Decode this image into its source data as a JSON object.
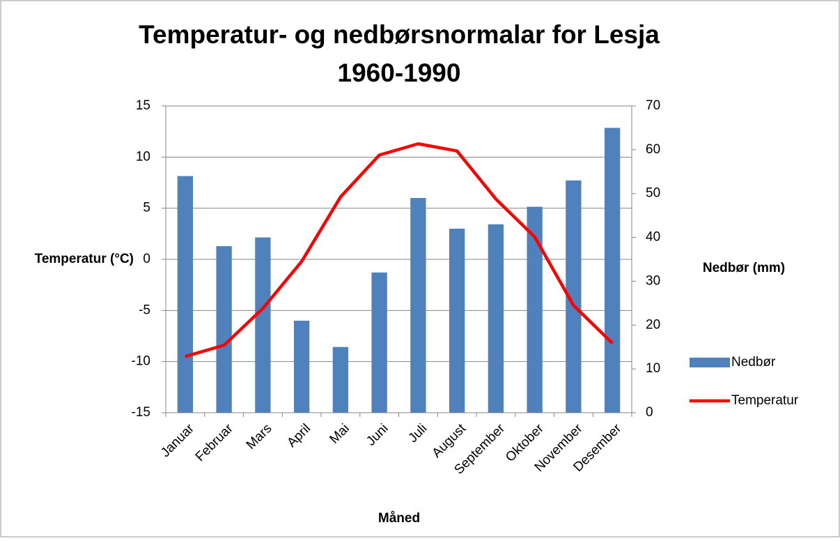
{
  "chart_data": {
    "type": "bar_line",
    "title": "Temperatur- og nedbørsnormalar for Lesja",
    "subtitle": "1960-1990",
    "x_label": "Måned",
    "y_label": "Temperatur (°C)",
    "y2_label": "Nedbør (mm)",
    "categories": [
      "Januar",
      "Februar",
      "Mars",
      "April",
      "Mai",
      "Juni",
      "Juli",
      "August",
      "September",
      "Oktober",
      "November",
      "Desember"
    ],
    "series": [
      {
        "name": "Nedbør",
        "type": "bar",
        "axis": "y2",
        "color": "#4f81bd",
        "values": [
          54,
          38,
          40,
          21,
          15,
          32,
          49,
          42,
          43,
          47,
          53,
          65
        ]
      },
      {
        "name": "Temperatur",
        "type": "line",
        "axis": "y",
        "color": "#ff0000",
        "values": [
          -9.5,
          -8.4,
          -4.8,
          -0.2,
          6.1,
          10.2,
          11.3,
          10.6,
          5.9,
          2.2,
          -4.5,
          -8.2
        ]
      }
    ],
    "ylim": [
      -15,
      15
    ],
    "yticks": [
      -15,
      -10,
      -5,
      0,
      5,
      10,
      15
    ],
    "y2lim": [
      0,
      70
    ],
    "y2ticks": [
      0,
      10,
      20,
      30,
      40,
      50,
      60,
      70
    ],
    "grid": true,
    "legend": "right"
  }
}
